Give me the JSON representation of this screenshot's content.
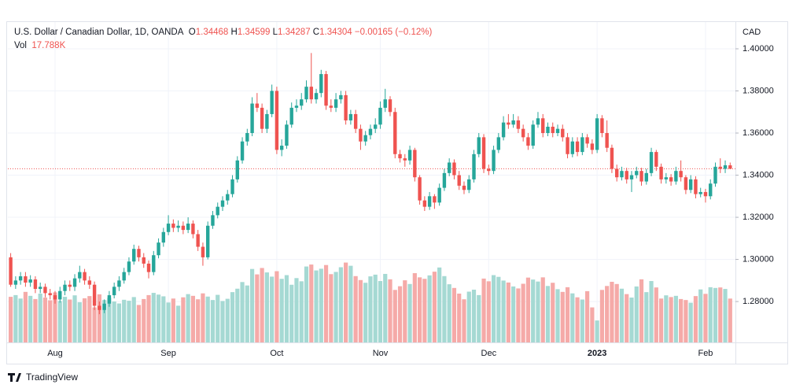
{
  "chart_data": {
    "type": "candlestick",
    "symbol": "U.S. Dollar / Canadian Dollar, 1D, OANDA",
    "ohlc_letters": [
      "O",
      "H",
      "L",
      "C"
    ],
    "change_label": "−0.00165 (−0.12%)",
    "volume_name": "Vol",
    "volume_last_label": "17.788K",
    "currency": "CAD",
    "brand": "TradingView",
    "up_color": "#26a69a",
    "down_color": "#ef5350",
    "volume_up_color": "#a5d9d3",
    "volume_down_color": "#f5aaa8",
    "grid": true,
    "ylim": [
      1.2606,
      1.4127
    ],
    "yticks": [
      {
        "value": 1.28,
        "label": "1.28000"
      },
      {
        "value": 1.3,
        "label": "1.30000"
      },
      {
        "value": 1.32,
        "label": "1.32000"
      },
      {
        "value": 1.34,
        "label": "1.34000"
      },
      {
        "value": 1.36,
        "label": "1.36000"
      },
      {
        "value": 1.38,
        "label": "1.38000"
      },
      {
        "value": 1.4,
        "label": "1.40000"
      }
    ],
    "volume_ylim": [
      0,
      130000
    ],
    "categories": [
      null,
      null,
      null,
      null,
      null,
      null,
      null,
      null,
      null,
      "Aug",
      null,
      null,
      null,
      null,
      null,
      null,
      null,
      null,
      null,
      null,
      null,
      null,
      null,
      null,
      null,
      null,
      null,
      null,
      null,
      null,
      null,
      null,
      "Sep",
      null,
      null,
      null,
      null,
      null,
      null,
      null,
      null,
      null,
      null,
      null,
      null,
      null,
      null,
      null,
      null,
      null,
      null,
      null,
      null,
      null,
      "Oct",
      null,
      null,
      null,
      null,
      null,
      null,
      null,
      null,
      null,
      null,
      null,
      null,
      null,
      null,
      null,
      null,
      null,
      null,
      null,
      null,
      "Nov",
      null,
      null,
      null,
      null,
      null,
      null,
      null,
      null,
      null,
      null,
      null,
      null,
      null,
      null,
      null,
      null,
      null,
      null,
      null,
      null,
      null,
      "Dec",
      null,
      null,
      null,
      null,
      null,
      null,
      null,
      null,
      null,
      null,
      null,
      null,
      null,
      null,
      null,
      null,
      null,
      null,
      null,
      null,
      null,
      "2023",
      null,
      null,
      null,
      null,
      null,
      null,
      null,
      null,
      null,
      null,
      null,
      null,
      null,
      null,
      null,
      null,
      null,
      null,
      null,
      null,
      null,
      "Feb",
      null,
      null,
      null,
      null,
      null
    ],
    "ohlc": [
      [
        1.301,
        1.303,
        1.287,
        1.288
      ],
      [
        1.288,
        1.292,
        1.286,
        1.29
      ],
      [
        1.29,
        1.294,
        1.288,
        1.292
      ],
      [
        1.292,
        1.294,
        1.287,
        1.289
      ],
      [
        1.289,
        1.2925,
        1.287,
        1.2905
      ],
      [
        1.2905,
        1.292,
        1.284,
        1.286
      ],
      [
        1.286,
        1.289,
        1.284,
        1.287
      ],
      [
        1.287,
        1.2885,
        1.282,
        1.284
      ],
      [
        1.284,
        1.286,
        1.281,
        1.283
      ],
      [
        1.283,
        1.285,
        1.279,
        1.281
      ],
      [
        1.281,
        1.287,
        1.2795,
        1.285
      ],
      [
        1.285,
        1.29,
        1.283,
        1.288
      ],
      [
        1.288,
        1.29,
        1.285,
        1.287
      ],
      [
        1.287,
        1.293,
        1.285,
        1.291
      ],
      [
        1.291,
        1.297,
        1.289,
        1.294
      ],
      [
        1.294,
        1.2955,
        1.288,
        1.29
      ],
      [
        1.29,
        1.292,
        1.286,
        1.288
      ],
      [
        1.288,
        1.2895,
        1.276,
        1.278
      ],
      [
        1.278,
        1.28,
        1.274,
        1.276
      ],
      [
        1.276,
        1.281,
        1.2745,
        1.279
      ],
      [
        1.279,
        1.285,
        1.2775,
        1.283
      ],
      [
        1.283,
        1.289,
        1.2815,
        1.287
      ],
      [
        1.287,
        1.292,
        1.285,
        1.29
      ],
      [
        1.29,
        1.296,
        1.2885,
        1.294
      ],
      [
        1.294,
        1.301,
        1.2925,
        1.299
      ],
      [
        1.299,
        1.307,
        1.2975,
        1.305
      ],
      [
        1.305,
        1.3065,
        1.299,
        1.301
      ],
      [
        1.301,
        1.303,
        1.296,
        1.298
      ],
      [
        1.298,
        1.2995,
        1.291,
        1.294
      ],
      [
        1.294,
        1.304,
        1.2925,
        1.302
      ],
      [
        1.302,
        1.31,
        1.3005,
        1.308
      ],
      [
        1.308,
        1.315,
        1.306,
        1.313
      ],
      [
        1.313,
        1.321,
        1.3115,
        1.317
      ],
      [
        1.317,
        1.319,
        1.313,
        1.315
      ],
      [
        1.315,
        1.3185,
        1.313,
        1.316
      ],
      [
        1.316,
        1.318,
        1.312,
        1.314
      ],
      [
        1.314,
        1.32,
        1.3125,
        1.317
      ],
      [
        1.317,
        1.3185,
        1.31,
        1.312
      ],
      [
        1.312,
        1.314,
        1.304,
        1.306
      ],
      [
        1.306,
        1.308,
        1.297,
        1.301
      ],
      [
        1.301,
        1.318,
        1.3,
        1.316
      ],
      [
        1.316,
        1.323,
        1.3145,
        1.321
      ],
      [
        1.321,
        1.327,
        1.3195,
        1.325
      ],
      [
        1.325,
        1.33,
        1.323,
        1.328
      ],
      [
        1.328,
        1.333,
        1.326,
        1.331
      ],
      [
        1.331,
        1.34,
        1.3295,
        1.338
      ],
      [
        1.338,
        1.349,
        1.3365,
        1.347
      ],
      [
        1.347,
        1.358,
        1.3455,
        1.356
      ],
      [
        1.356,
        1.362,
        1.354,
        1.36
      ],
      [
        1.36,
        1.377,
        1.3585,
        1.374
      ],
      [
        1.374,
        1.379,
        1.37,
        1.372
      ],
      [
        1.372,
        1.374,
        1.36,
        1.362
      ],
      [
        1.362,
        1.371,
        1.36,
        1.369
      ],
      [
        1.369,
        1.383,
        1.3675,
        1.38
      ],
      [
        1.38,
        1.382,
        1.35,
        1.352
      ],
      [
        1.352,
        1.357,
        1.349,
        1.354
      ],
      [
        1.354,
        1.366,
        1.3525,
        1.364
      ],
      [
        1.364,
        1.3745,
        1.3625,
        1.372
      ],
      [
        1.372,
        1.376,
        1.37,
        1.373
      ],
      [
        1.373,
        1.379,
        1.371,
        1.376
      ],
      [
        1.376,
        1.385,
        1.3745,
        1.382
      ],
      [
        1.382,
        1.398,
        1.374,
        1.376
      ],
      [
        1.376,
        1.381,
        1.374,
        1.379
      ],
      [
        1.379,
        1.39,
        1.377,
        1.388
      ],
      [
        1.388,
        1.3895,
        1.371,
        1.373
      ],
      [
        1.373,
        1.376,
        1.37,
        1.372
      ],
      [
        1.372,
        1.379,
        1.37,
        1.376
      ],
      [
        1.376,
        1.38,
        1.374,
        1.378
      ],
      [
        1.378,
        1.38,
        1.364,
        1.366
      ],
      [
        1.366,
        1.371,
        1.364,
        1.369
      ],
      [
        1.369,
        1.371,
        1.36,
        1.362
      ],
      [
        1.362,
        1.364,
        1.352,
        1.356
      ],
      [
        1.356,
        1.361,
        1.354,
        1.359
      ],
      [
        1.359,
        1.364,
        1.357,
        1.362
      ],
      [
        1.362,
        1.367,
        1.36,
        1.364
      ],
      [
        1.364,
        1.375,
        1.362,
        1.372
      ],
      [
        1.372,
        1.381,
        1.37,
        1.376
      ],
      [
        1.376,
        1.3775,
        1.368,
        1.37
      ],
      [
        1.37,
        1.372,
        1.348,
        1.35
      ],
      [
        1.35,
        1.352,
        1.346,
        1.348
      ],
      [
        1.348,
        1.35,
        1.344,
        1.347
      ],
      [
        1.347,
        1.354,
        1.345,
        1.352
      ],
      [
        1.352,
        1.353,
        1.337,
        1.339
      ],
      [
        1.339,
        1.34,
        1.326,
        1.328
      ],
      [
        1.328,
        1.33,
        1.323,
        1.325
      ],
      [
        1.325,
        1.332,
        1.3235,
        1.33
      ],
      [
        1.33,
        1.331,
        1.324,
        1.327
      ],
      [
        1.327,
        1.336,
        1.3255,
        1.334
      ],
      [
        1.334,
        1.343,
        1.3325,
        1.341
      ],
      [
        1.341,
        1.348,
        1.3395,
        1.346
      ],
      [
        1.346,
        1.3475,
        1.338,
        1.34
      ],
      [
        1.34,
        1.342,
        1.333,
        1.335
      ],
      [
        1.335,
        1.337,
        1.331,
        1.333
      ],
      [
        1.333,
        1.34,
        1.3315,
        1.338
      ],
      [
        1.338,
        1.352,
        1.3365,
        1.35
      ],
      [
        1.35,
        1.36,
        1.3485,
        1.358
      ],
      [
        1.358,
        1.3595,
        1.341,
        1.343
      ],
      [
        1.343,
        1.345,
        1.34,
        1.342
      ],
      [
        1.342,
        1.354,
        1.3405,
        1.352
      ],
      [
        1.352,
        1.36,
        1.3505,
        1.358
      ],
      [
        1.358,
        1.368,
        1.3565,
        1.365
      ],
      [
        1.365,
        1.369,
        1.362,
        1.364
      ],
      [
        1.364,
        1.369,
        1.3625,
        1.366
      ],
      [
        1.366,
        1.368,
        1.36,
        1.362
      ],
      [
        1.362,
        1.364,
        1.356,
        1.358
      ],
      [
        1.358,
        1.36,
        1.352,
        1.354
      ],
      [
        1.354,
        1.366,
        1.3525,
        1.364
      ],
      [
        1.364,
        1.37,
        1.3625,
        1.367
      ],
      [
        1.367,
        1.369,
        1.358,
        1.36
      ],
      [
        1.36,
        1.365,
        1.3585,
        1.363
      ],
      [
        1.363,
        1.365,
        1.358,
        1.36
      ],
      [
        1.36,
        1.364,
        1.3585,
        1.362
      ],
      [
        1.362,
        1.364,
        1.356,
        1.358
      ],
      [
        1.358,
        1.36,
        1.348,
        1.35
      ],
      [
        1.35,
        1.358,
        1.3485,
        1.356
      ],
      [
        1.356,
        1.358,
        1.349,
        1.351
      ],
      [
        1.351,
        1.36,
        1.3495,
        1.358
      ],
      [
        1.358,
        1.3595,
        1.353,
        1.355
      ],
      [
        1.355,
        1.357,
        1.35,
        1.352
      ],
      [
        1.352,
        1.369,
        1.3505,
        1.367
      ],
      [
        1.367,
        1.3685,
        1.358,
        1.36
      ],
      [
        1.36,
        1.366,
        1.351,
        1.353
      ],
      [
        1.353,
        1.3545,
        1.341,
        1.343
      ],
      [
        1.343,
        1.345,
        1.337,
        1.339
      ],
      [
        1.339,
        1.344,
        1.3375,
        1.342
      ],
      [
        1.342,
        1.3435,
        1.336,
        1.338
      ],
      [
        1.338,
        1.342,
        1.332,
        1.34
      ],
      [
        1.34,
        1.344,
        1.3385,
        1.342
      ],
      [
        1.342,
        1.3435,
        1.335,
        1.337
      ],
      [
        1.337,
        1.343,
        1.3355,
        1.341
      ],
      [
        1.341,
        1.353,
        1.3395,
        1.351
      ],
      [
        1.351,
        1.352,
        1.342,
        1.344
      ],
      [
        1.344,
        1.3455,
        1.336,
        1.338
      ],
      [
        1.338,
        1.341,
        1.336,
        1.339
      ],
      [
        1.339,
        1.3405,
        1.335,
        1.337
      ],
      [
        1.337,
        1.344,
        1.3355,
        1.342
      ],
      [
        1.342,
        1.347,
        1.337,
        1.339
      ],
      [
        1.339,
        1.34,
        1.331,
        1.333
      ],
      [
        1.333,
        1.34,
        1.3315,
        1.338
      ],
      [
        1.338,
        1.3395,
        1.329,
        1.331
      ],
      [
        1.331,
        1.334,
        1.3295,
        1.332
      ],
      [
        1.332,
        1.3335,
        1.327,
        1.33
      ],
      [
        1.33,
        1.338,
        1.3285,
        1.336
      ],
      [
        1.336,
        1.346,
        1.3345,
        1.344
      ],
      [
        1.344,
        1.348,
        1.341,
        1.343
      ],
      [
        1.343,
        1.347,
        1.341,
        1.3447
      ],
      [
        1.34468,
        1.34599,
        1.34287,
        1.34304
      ]
    ],
    "volume": [
      18500,
      19200,
      17800,
      20500,
      18900,
      17600,
      19800,
      18200,
      17100,
      20300,
      16800,
      18500,
      17400,
      19100,
      16300,
      17900,
      18800,
      14200,
      19500,
      17200,
      18100,
      16600,
      15800,
      17300,
      16900,
      18400,
      15200,
      17600,
      19200,
      20100,
      19400,
      18700,
      16200,
      17800,
      14900,
      18300,
      19600,
      18900,
      17500,
      19900,
      18600,
      17200,
      19300,
      16800,
      17700,
      20400,
      21800,
      24500,
      23100,
      29800,
      27600,
      30200,
      28400,
      26700,
      28900,
      25800,
      27300,
      23400,
      26100,
      24800,
      30800,
      31600,
      29200,
      29900,
      31400,
      27700,
      28600,
      30500,
      32400,
      31100,
      26900,
      25300,
      24200,
      26800,
      27500,
      24900,
      27800,
      25600,
      21300,
      22800,
      25200,
      23700,
      28100,
      26400,
      25800,
      27200,
      28700,
      30400,
      26900,
      23600,
      22100,
      19800,
      17500,
      20600,
      21400,
      19200,
      25900,
      24800,
      27300,
      26600,
      25100,
      24300,
      22700,
      21900,
      23800,
      26300,
      25500,
      24700,
      26400,
      22900,
      24200,
      21600,
      20500,
      22400,
      19900,
      18300,
      17400,
      20800,
      14200,
      8900,
      21300,
      22900,
      24600,
      23700,
      21800,
      19600,
      18200,
      22700,
      25600,
      20400,
      24900,
      22300,
      17800,
      19100,
      18400,
      18900,
      17600,
      17200,
      16100,
      18800,
      21500,
      19700,
      22400,
      22100,
      22300,
      21700,
      17788
    ]
  }
}
